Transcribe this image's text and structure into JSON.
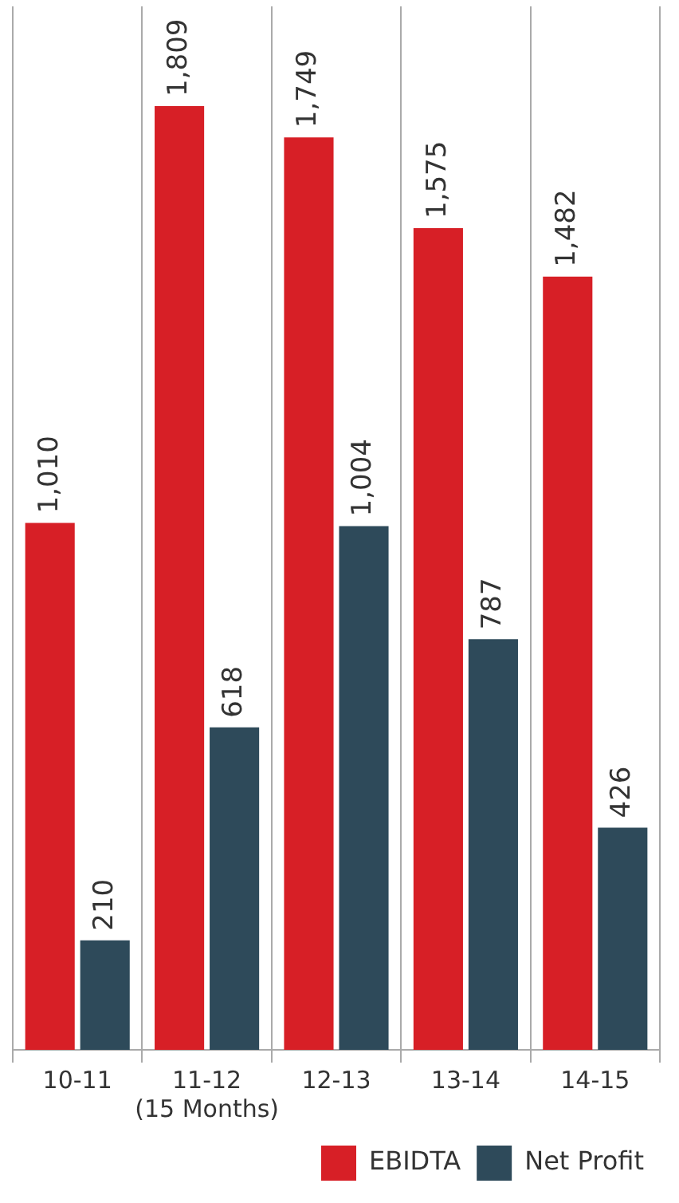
{
  "chart_data": {
    "type": "bar",
    "categories": [
      "10-11",
      "11-12\n(15 Months)",
      "12-13",
      "13-14",
      "14-15"
    ],
    "series": [
      {
        "name": "EBIDTA",
        "color": "#d71f26",
        "values": [
          1010,
          1809,
          1749,
          1575,
          1482
        ],
        "value_labels": [
          "1,010",
          "1,809",
          "1,749",
          "1,575",
          "1,482"
        ]
      },
      {
        "name": "Net Profit",
        "color": "#2e4a5a",
        "values": [
          210,
          618,
          1004,
          787,
          426
        ],
        "value_labels": [
          "210",
          "618",
          "1,004",
          "787",
          "426"
        ]
      }
    ],
    "grid": "x",
    "legend": "bottom right",
    "tick_labels": "x"
  }
}
